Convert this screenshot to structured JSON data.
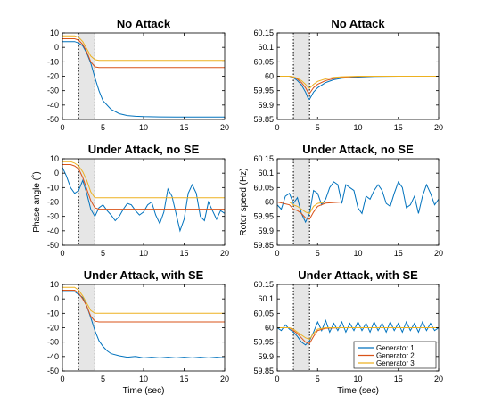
{
  "chart_data": [
    {
      "type": "line",
      "title": "No Attack",
      "xlabel": "",
      "ylabel": "",
      "xlim": [
        0,
        20
      ],
      "ylim": [
        -50,
        10
      ],
      "xticks": [
        0,
        5,
        10,
        15,
        20
      ],
      "yticks": [
        10,
        0,
        -10,
        -20,
        -30,
        -40,
        -50
      ],
      "attack_window_sec": [
        2,
        4
      ],
      "series": [
        {
          "color": "#0072BD",
          "x": [
            0,
            1,
            1.5,
            2,
            2.5,
            3,
            3.5,
            4,
            4.5,
            5,
            6,
            7,
            8,
            9,
            10,
            12,
            14,
            16,
            18,
            20
          ],
          "y": [
            4,
            4,
            4,
            3,
            1,
            -4,
            -11,
            -21,
            -30,
            -37,
            -43,
            -46,
            -47.3,
            -47.8,
            -48,
            -48.2,
            -48.3,
            -48.3,
            -48.3,
            -48.3
          ]
        },
        {
          "color": "#D95319",
          "x": [
            0,
            1,
            1.5,
            2,
            2.5,
            3,
            3.5,
            4,
            4.5,
            5,
            20
          ],
          "y": [
            6,
            6,
            6,
            5,
            2,
            -3,
            -10,
            -13.5,
            -14,
            -14,
            -14
          ]
        },
        {
          "color": "#EDB120",
          "x": [
            0,
            1,
            1.5,
            2,
            2.5,
            3,
            3.5,
            4,
            4.5,
            5,
            20
          ],
          "y": [
            8,
            8,
            8,
            7,
            4,
            -1,
            -6,
            -8.5,
            -9,
            -9,
            -9
          ]
        }
      ]
    },
    {
      "type": "line",
      "title": "No Attack",
      "xlabel": "",
      "ylabel": "",
      "xlim": [
        0,
        20
      ],
      "ylim": [
        59.85,
        60.15
      ],
      "xticks": [
        0,
        5,
        10,
        15,
        20
      ],
      "yticks": [
        "60.15",
        "60.1",
        "60.05",
        "60",
        "59.95",
        "59.9",
        "59.85"
      ],
      "attack_window_sec": [
        2,
        4
      ],
      "series": [
        {
          "color": "#0072BD",
          "x": [
            0,
            1.5,
            2,
            2.5,
            3,
            3.5,
            3.8,
            4,
            4.5,
            5,
            6,
            7,
            8,
            10,
            12,
            15,
            20
          ],
          "y": [
            60,
            60,
            59.995,
            59.985,
            59.97,
            59.945,
            59.925,
            59.92,
            59.945,
            59.96,
            59.978,
            59.988,
            59.993,
            59.997,
            59.999,
            60,
            60
          ]
        },
        {
          "color": "#D95319",
          "x": [
            0,
            1.5,
            2,
            2.5,
            3,
            3.5,
            3.8,
            4,
            4.5,
            5,
            6,
            7,
            8,
            10,
            12,
            15,
            20
          ],
          "y": [
            60,
            60,
            59.997,
            59.99,
            59.978,
            59.96,
            59.945,
            59.94,
            59.96,
            59.972,
            59.985,
            59.992,
            59.996,
            59.999,
            60,
            60,
            60
          ]
        },
        {
          "color": "#EDB120",
          "x": [
            0,
            1.5,
            2,
            2.5,
            3,
            3.5,
            3.8,
            4,
            4.5,
            5,
            6,
            7,
            8,
            10,
            12,
            15,
            20
          ],
          "y": [
            60,
            60,
            59.998,
            59.993,
            59.985,
            59.972,
            59.962,
            59.958,
            59.972,
            59.982,
            59.991,
            59.996,
            59.998,
            60,
            60,
            60,
            60
          ]
        }
      ]
    },
    {
      "type": "line",
      "title": "Under Attack, no SE",
      "xlabel": "",
      "ylabel": "Phase angle (˚)",
      "xlim": [
        0,
        20
      ],
      "ylim": [
        -50,
        10
      ],
      "xticks": [
        0,
        5,
        10,
        15,
        20
      ],
      "yticks": [
        10,
        0,
        -10,
        -20,
        -30,
        -40,
        -50
      ],
      "attack_window_sec": [
        2,
        4
      ],
      "series": [
        {
          "color": "#0072BD",
          "x": [
            0,
            0.5,
            1,
            1.5,
            2,
            2.5,
            3,
            3.5,
            4,
            4.5,
            5,
            5.5,
            6,
            6.5,
            7,
            7.5,
            8,
            8.5,
            9,
            9.5,
            10,
            10.5,
            11,
            11.5,
            12,
            12.5,
            13,
            13.5,
            14,
            14.5,
            15,
            15.5,
            16,
            16.5,
            17,
            17.5,
            18,
            18.5,
            19,
            19.5,
            20
          ],
          "y": [
            4,
            -2,
            -10,
            -14,
            -12,
            -5,
            -14,
            -25,
            -30,
            -24,
            -22,
            -26,
            -29,
            -33,
            -30,
            -25,
            -21,
            -22,
            -26,
            -29,
            -27,
            -22,
            -20,
            -29,
            -35,
            -27,
            -11,
            -16,
            -28,
            -40,
            -32,
            -14,
            -8,
            -14,
            -30,
            -33,
            -20,
            -26,
            -32,
            -26,
            -28
          ]
        },
        {
          "color": "#D95319",
          "x": [
            0,
            1,
            1.5,
            2,
            2.5,
            3,
            3.5,
            4,
            4.5,
            5,
            20
          ],
          "y": [
            6,
            6,
            5,
            3,
            -3,
            -11,
            -19,
            -24,
            -25,
            -25,
            -25
          ]
        },
        {
          "color": "#EDB120",
          "x": [
            0,
            1,
            1.5,
            2,
            2.5,
            3,
            3.5,
            4,
            4.5,
            5,
            20
          ],
          "y": [
            8,
            8,
            7,
            5,
            1,
            -5,
            -13,
            -17,
            -17,
            -17,
            -17
          ]
        }
      ]
    },
    {
      "type": "line",
      "title": "Under Attack, no SE",
      "xlabel": "",
      "ylabel": "Rotor speed (Hz)",
      "xlim": [
        0,
        20
      ],
      "ylim": [
        59.85,
        60.15
      ],
      "xticks": [
        0,
        5,
        10,
        15,
        20
      ],
      "yticks": [
        "60.15",
        "60.1",
        "60.05",
        "60",
        "59.95",
        "59.9",
        "59.85"
      ],
      "attack_window_sec": [
        2,
        4
      ],
      "series": [
        {
          "color": "#0072BD",
          "x": [
            0,
            0.5,
            1,
            1.5,
            2,
            2.5,
            3,
            3.5,
            4,
            4.5,
            5,
            5.5,
            6,
            6.5,
            7,
            7.5,
            8,
            8.5,
            9,
            9.5,
            10,
            10.5,
            11,
            11.5,
            12,
            12.5,
            13,
            13.5,
            14,
            14.5,
            15,
            15.5,
            16,
            16.5,
            17,
            17.5,
            18,
            18.5,
            19,
            19.5,
            20
          ],
          "y": [
            59.99,
            59.975,
            60.02,
            60.03,
            59.995,
            60.015,
            59.96,
            59.93,
            59.96,
            60.04,
            60.03,
            59.99,
            60.01,
            60.05,
            60.07,
            60.06,
            59.995,
            60.06,
            60.05,
            60.04,
            59.98,
            59.96,
            60.02,
            60.01,
            60.04,
            60.06,
            60.04,
            59.995,
            59.985,
            60.03,
            60.07,
            60.05,
            59.98,
            59.99,
            60.02,
            59.96,
            60.02,
            60.06,
            60.03,
            59.99,
            60.01
          ]
        },
        {
          "color": "#D95319",
          "x": [
            0,
            1.5,
            2,
            2.5,
            3,
            3.5,
            4,
            4.5,
            5,
            6,
            8,
            20
          ],
          "y": [
            60,
            59.99,
            59.975,
            59.97,
            59.96,
            59.945,
            59.94,
            59.965,
            59.985,
            59.996,
            60,
            60
          ]
        },
        {
          "color": "#EDB120",
          "x": [
            0,
            1.5,
            2,
            2.5,
            3,
            3.5,
            4,
            4.5,
            5,
            6,
            8,
            20
          ],
          "y": [
            60,
            60,
            59.99,
            59.985,
            59.975,
            59.965,
            59.96,
            59.985,
            59.995,
            60,
            60,
            60
          ]
        }
      ]
    },
    {
      "type": "line",
      "title": "Under Attack, with SE",
      "xlabel": "Time (sec)",
      "ylabel": "",
      "xlim": [
        0,
        20
      ],
      "ylim": [
        -50,
        10
      ],
      "xticks": [
        0,
        5,
        10,
        15,
        20
      ],
      "yticks": [
        10,
        0,
        -10,
        -20,
        -30,
        -40,
        -50
      ],
      "attack_window_sec": [
        2,
        4
      ],
      "series": [
        {
          "color": "#0072BD",
          "x": [
            0,
            1,
            1.5,
            2,
            2.5,
            3,
            3.5,
            4,
            4.5,
            5,
            5.5,
            6,
            7,
            8,
            9,
            10,
            11,
            12,
            13,
            14,
            15,
            16,
            17,
            18,
            19,
            20
          ],
          "y": [
            5,
            5,
            5,
            3,
            1,
            -5,
            -13,
            -22,
            -29,
            -33,
            -36,
            -38,
            -39.5,
            -40.5,
            -40,
            -41,
            -40.5,
            -41,
            -40.5,
            -41,
            -40.5,
            -41,
            -40.5,
            -41,
            -40.5,
            -41
          ]
        },
        {
          "color": "#D95319",
          "x": [
            0,
            1,
            1.5,
            2,
            2.5,
            3,
            3.5,
            4,
            4.5,
            5,
            20
          ],
          "y": [
            6,
            6,
            6,
            4,
            0,
            -5,
            -12,
            -15.5,
            -16,
            -16,
            -16
          ]
        },
        {
          "color": "#EDB120",
          "x": [
            0,
            1,
            1.5,
            2,
            2.5,
            3,
            3.5,
            4,
            4.5,
            5,
            20
          ],
          "y": [
            8,
            8,
            8,
            6,
            2,
            -3,
            -8,
            -10,
            -10,
            -10,
            -10
          ]
        }
      ]
    },
    {
      "type": "line",
      "title": "Under Attack, with SE",
      "xlabel": "Time (sec)",
      "ylabel": "",
      "xlim": [
        0,
        20
      ],
      "ylim": [
        59.85,
        60.15
      ],
      "xticks": [
        0,
        5,
        10,
        15,
        20
      ],
      "yticks": [
        "60.15",
        "60.1",
        "60.05",
        "60",
        "59.95",
        "59.9",
        "59.85"
      ],
      "attack_window_sec": [
        2,
        4
      ],
      "legend_placement": "bottom-right",
      "series": [
        {
          "name": "Generator 1",
          "color": "#0072BD",
          "x": [
            0,
            0.5,
            1,
            1.5,
            2,
            2.5,
            3,
            3.5,
            4,
            4.5,
            5,
            5.5,
            6,
            6.5,
            7,
            7.5,
            8,
            8.5,
            9,
            9.5,
            10,
            10.5,
            11,
            11.5,
            12,
            12.5,
            13,
            13.5,
            14,
            14.5,
            15,
            15.5,
            16,
            16.5,
            17,
            17.5,
            18,
            18.5,
            19,
            19.5,
            20
          ],
          "y": [
            60,
            59.99,
            60.01,
            59.995,
            59.985,
            59.97,
            59.95,
            59.94,
            59.955,
            59.985,
            60.02,
            59.99,
            60.025,
            59.985,
            60.015,
            59.99,
            60.02,
            59.985,
            60.015,
            59.99,
            60.02,
            59.99,
            60.015,
            59.985,
            60.02,
            59.99,
            60.015,
            59.985,
            60.02,
            59.99,
            60.015,
            59.985,
            60.02,
            59.99,
            60.015,
            59.985,
            60.02,
            59.99,
            60.015,
            59.99,
            60
          ]
        },
        {
          "name": "Generator 2",
          "color": "#D95319",
          "x": [
            0,
            1.5,
            2,
            2.5,
            3,
            3.5,
            4,
            4.5,
            5,
            6,
            8,
            20
          ],
          "y": [
            60,
            60,
            59.99,
            59.98,
            59.965,
            59.95,
            59.945,
            59.97,
            59.99,
            59.998,
            60,
            60
          ]
        },
        {
          "name": "Generator 3",
          "color": "#EDB120",
          "x": [
            0,
            1.5,
            2,
            2.5,
            3,
            3.5,
            4,
            4.5,
            5,
            6,
            8,
            20
          ],
          "y": [
            60,
            60,
            59.995,
            59.985,
            59.975,
            59.965,
            59.96,
            59.98,
            59.995,
            60,
            60,
            60
          ]
        }
      ]
    }
  ]
}
